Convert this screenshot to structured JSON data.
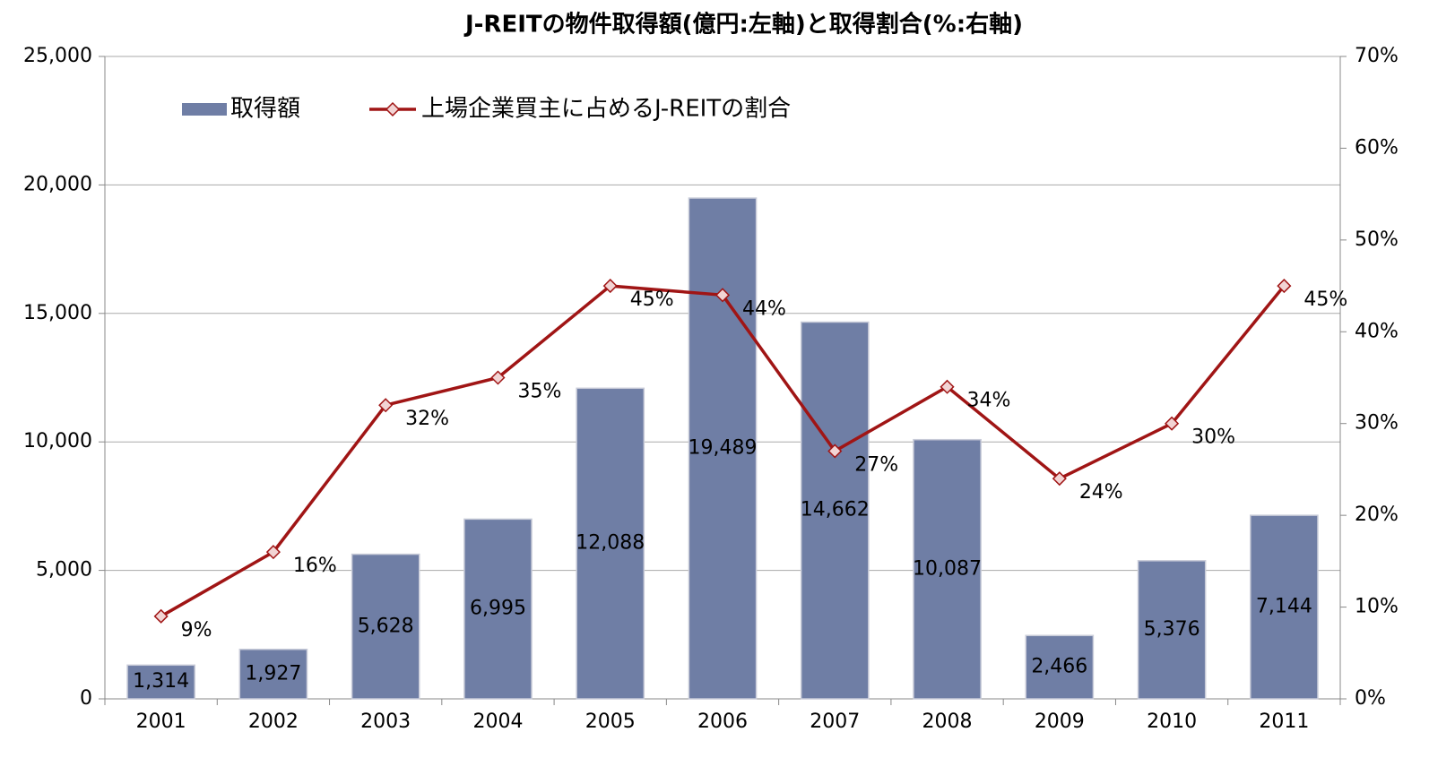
{
  "chart_data": {
    "type": "bar_line",
    "title": "J-REITの物件取得額(億円:左軸)と取得割合(%:右軸)",
    "categories": [
      "2001",
      "2002",
      "2003",
      "2004",
      "2005",
      "2006",
      "2007",
      "2008",
      "2009",
      "2010",
      "2011"
    ],
    "series": [
      {
        "name": "取得額",
        "type": "bar",
        "color": "#6f7ea5",
        "values": [
          1314,
          1927,
          5628,
          6995,
          12088,
          19489,
          14662,
          10087,
          2466,
          5376,
          7144
        ],
        "value_labels": [
          "1,314",
          "1,927",
          "5,628",
          "6,995",
          "12,088",
          "19,489",
          "14,662",
          "10,087",
          "2,466",
          "5,376",
          "7,144"
        ]
      },
      {
        "name": "上場企業買主に占めるJ-REITの割合",
        "type": "line",
        "axis": "y2",
        "color": "#a01515",
        "values": [
          9,
          16,
          32,
          35,
          45,
          44,
          27,
          34,
          24,
          30,
          45
        ],
        "value_labels": [
          "9%",
          "16%",
          "32%",
          "35%",
          "45%",
          "44%",
          "27%",
          "34%",
          "24%",
          "30%",
          "45%"
        ]
      }
    ],
    "ylim": [
      0,
      25000
    ],
    "yticks": [
      0,
      {
        "value": 5000,
        "label": "5,000"
      },
      {
        "value": 10000,
        "label": "10,000"
      },
      {
        "value": 15000,
        "label": "15,000"
      },
      {
        "value": 20000,
        "label": "20,000"
      },
      {
        "value": 25000,
        "label": "25,000"
      }
    ],
    "y2lim": [
      0,
      70
    ],
    "y2ticks": [
      {
        "value": 0,
        "label": "0%"
      },
      {
        "value": 10,
        "label": "10%"
      },
      {
        "value": 20,
        "label": "20%"
      },
      {
        "value": 30,
        "label": "30%"
      },
      {
        "value": 40,
        "label": "40%"
      },
      {
        "value": 50,
        "label": "50%"
      },
      {
        "value": 60,
        "label": "60%"
      },
      {
        "value": 70,
        "label": "70%"
      }
    ],
    "grid": true,
    "legend": "top-left"
  }
}
